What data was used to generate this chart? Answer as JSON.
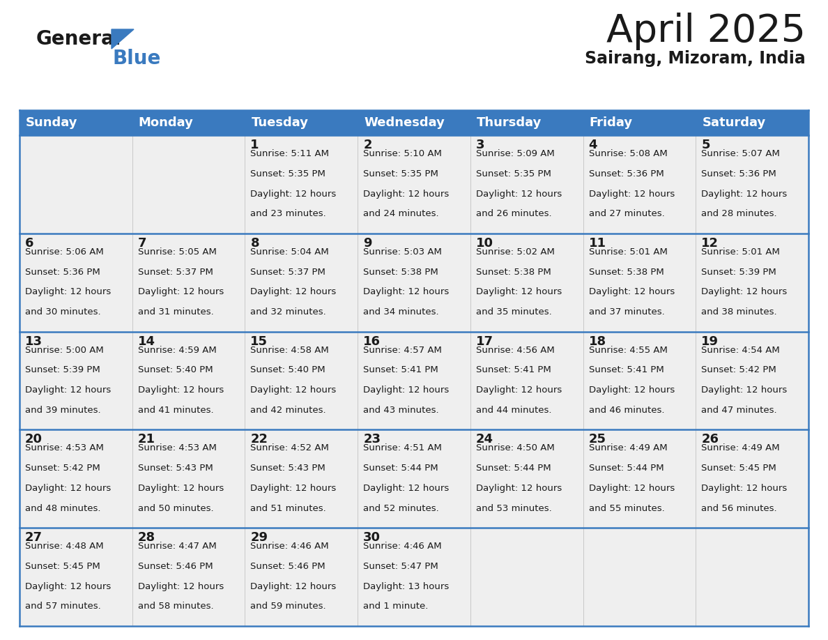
{
  "title": "April 2025",
  "subtitle": "Sairang, Mizoram, India",
  "header_color": "#3a7abf",
  "header_text_color": "#ffffff",
  "cell_bg_color": "#efefef",
  "border_color": "#3a7abf",
  "sep_line_color": "#3a7abf",
  "text_color": "#1a1a1a",
  "day_names": [
    "Sunday",
    "Monday",
    "Tuesday",
    "Wednesday",
    "Thursday",
    "Friday",
    "Saturday"
  ],
  "weeks": [
    [
      {
        "day": "",
        "sunrise": "",
        "sunset": "",
        "daylight_h": "",
        "daylight_m": ""
      },
      {
        "day": "",
        "sunrise": "",
        "sunset": "",
        "daylight_h": "",
        "daylight_m": ""
      },
      {
        "day": "1",
        "sunrise": "5:11 AM",
        "sunset": "5:35 PM",
        "daylight_h": "12 hours",
        "daylight_m": "and 23 minutes."
      },
      {
        "day": "2",
        "sunrise": "5:10 AM",
        "sunset": "5:35 PM",
        "daylight_h": "12 hours",
        "daylight_m": "and 24 minutes."
      },
      {
        "day": "3",
        "sunrise": "5:09 AM",
        "sunset": "5:35 PM",
        "daylight_h": "12 hours",
        "daylight_m": "and 26 minutes."
      },
      {
        "day": "4",
        "sunrise": "5:08 AM",
        "sunset": "5:36 PM",
        "daylight_h": "12 hours",
        "daylight_m": "and 27 minutes."
      },
      {
        "day": "5",
        "sunrise": "5:07 AM",
        "sunset": "5:36 PM",
        "daylight_h": "12 hours",
        "daylight_m": "and 28 minutes."
      }
    ],
    [
      {
        "day": "6",
        "sunrise": "5:06 AM",
        "sunset": "5:36 PM",
        "daylight_h": "12 hours",
        "daylight_m": "and 30 minutes."
      },
      {
        "day": "7",
        "sunrise": "5:05 AM",
        "sunset": "5:37 PM",
        "daylight_h": "12 hours",
        "daylight_m": "and 31 minutes."
      },
      {
        "day": "8",
        "sunrise": "5:04 AM",
        "sunset": "5:37 PM",
        "daylight_h": "12 hours",
        "daylight_m": "and 32 minutes."
      },
      {
        "day": "9",
        "sunrise": "5:03 AM",
        "sunset": "5:38 PM",
        "daylight_h": "12 hours",
        "daylight_m": "and 34 minutes."
      },
      {
        "day": "10",
        "sunrise": "5:02 AM",
        "sunset": "5:38 PM",
        "daylight_h": "12 hours",
        "daylight_m": "and 35 minutes."
      },
      {
        "day": "11",
        "sunrise": "5:01 AM",
        "sunset": "5:38 PM",
        "daylight_h": "12 hours",
        "daylight_m": "and 37 minutes."
      },
      {
        "day": "12",
        "sunrise": "5:01 AM",
        "sunset": "5:39 PM",
        "daylight_h": "12 hours",
        "daylight_m": "and 38 minutes."
      }
    ],
    [
      {
        "day": "13",
        "sunrise": "5:00 AM",
        "sunset": "5:39 PM",
        "daylight_h": "12 hours",
        "daylight_m": "and 39 minutes."
      },
      {
        "day": "14",
        "sunrise": "4:59 AM",
        "sunset": "5:40 PM",
        "daylight_h": "12 hours",
        "daylight_m": "and 41 minutes."
      },
      {
        "day": "15",
        "sunrise": "4:58 AM",
        "sunset": "5:40 PM",
        "daylight_h": "12 hours",
        "daylight_m": "and 42 minutes."
      },
      {
        "day": "16",
        "sunrise": "4:57 AM",
        "sunset": "5:41 PM",
        "daylight_h": "12 hours",
        "daylight_m": "and 43 minutes."
      },
      {
        "day": "17",
        "sunrise": "4:56 AM",
        "sunset": "5:41 PM",
        "daylight_h": "12 hours",
        "daylight_m": "and 44 minutes."
      },
      {
        "day": "18",
        "sunrise": "4:55 AM",
        "sunset": "5:41 PM",
        "daylight_h": "12 hours",
        "daylight_m": "and 46 minutes."
      },
      {
        "day": "19",
        "sunrise": "4:54 AM",
        "sunset": "5:42 PM",
        "daylight_h": "12 hours",
        "daylight_m": "and 47 minutes."
      }
    ],
    [
      {
        "day": "20",
        "sunrise": "4:53 AM",
        "sunset": "5:42 PM",
        "daylight_h": "12 hours",
        "daylight_m": "and 48 minutes."
      },
      {
        "day": "21",
        "sunrise": "4:53 AM",
        "sunset": "5:43 PM",
        "daylight_h": "12 hours",
        "daylight_m": "and 50 minutes."
      },
      {
        "day": "22",
        "sunrise": "4:52 AM",
        "sunset": "5:43 PM",
        "daylight_h": "12 hours",
        "daylight_m": "and 51 minutes."
      },
      {
        "day": "23",
        "sunrise": "4:51 AM",
        "sunset": "5:44 PM",
        "daylight_h": "12 hours",
        "daylight_m": "and 52 minutes."
      },
      {
        "day": "24",
        "sunrise": "4:50 AM",
        "sunset": "5:44 PM",
        "daylight_h": "12 hours",
        "daylight_m": "and 53 minutes."
      },
      {
        "day": "25",
        "sunrise": "4:49 AM",
        "sunset": "5:44 PM",
        "daylight_h": "12 hours",
        "daylight_m": "and 55 minutes."
      },
      {
        "day": "26",
        "sunrise": "4:49 AM",
        "sunset": "5:45 PM",
        "daylight_h": "12 hours",
        "daylight_m": "and 56 minutes."
      }
    ],
    [
      {
        "day": "27",
        "sunrise": "4:48 AM",
        "sunset": "5:45 PM",
        "daylight_h": "12 hours",
        "daylight_m": "and 57 minutes."
      },
      {
        "day": "28",
        "sunrise": "4:47 AM",
        "sunset": "5:46 PM",
        "daylight_h": "12 hours",
        "daylight_m": "and 58 minutes."
      },
      {
        "day": "29",
        "sunrise": "4:46 AM",
        "sunset": "5:46 PM",
        "daylight_h": "12 hours",
        "daylight_m": "and 59 minutes."
      },
      {
        "day": "30",
        "sunrise": "4:46 AM",
        "sunset": "5:47 PM",
        "daylight_h": "13 hours",
        "daylight_m": "and 1 minute."
      },
      {
        "day": "",
        "sunrise": "",
        "sunset": "",
        "daylight_h": "",
        "daylight_m": ""
      },
      {
        "day": "",
        "sunrise": "",
        "sunset": "",
        "daylight_h": "",
        "daylight_m": ""
      },
      {
        "day": "",
        "sunrise": "",
        "sunset": "",
        "daylight_h": "",
        "daylight_m": ""
      }
    ]
  ],
  "logo_general_color": "#1a1a1a",
  "logo_blue_color": "#3a7abf",
  "title_fontsize": 40,
  "subtitle_fontsize": 17,
  "header_fontsize": 13,
  "day_num_fontsize": 13,
  "cell_text_fontsize": 9.5
}
